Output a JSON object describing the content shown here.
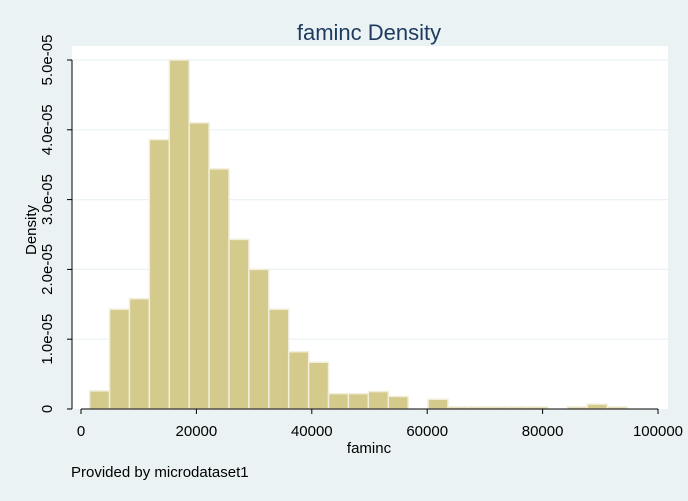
{
  "colors": {
    "background": "#EAF2F3",
    "plot_background": "#FFFFFF",
    "bar_fill": "#D3CA8C",
    "bar_stroke": "#F2EEDB",
    "gridline": "#EAF2F3",
    "title": "#1E3A5F",
    "axis": "#000000"
  },
  "chart_data": {
    "type": "bar",
    "subtype": "histogram",
    "title": "faminc Density",
    "xlabel": "faminc",
    "ylabel": "Density",
    "note": "Provided by microdataset1",
    "xlim": [
      0,
      100000
    ],
    "ylim": [
      0,
      5e-05
    ],
    "xticks": [
      0,
      20000,
      40000,
      60000,
      80000,
      100000
    ],
    "xtick_labels": [
      "0",
      "20000",
      "40000",
      "60000",
      "80000",
      "100000"
    ],
    "yticks": [
      0,
      1e-05,
      2e-05,
      3e-05,
      4e-05,
      5e-05
    ],
    "ytick_labels": [
      "0",
      "1.0e-05",
      "2.0e-05",
      "3.0e-05",
      "4.0e-05",
      "5.0e-05"
    ],
    "grid": true,
    "bins": [
      {
        "x0": 1500,
        "x1": 4950,
        "value": 2.6e-06
      },
      {
        "x0": 4950,
        "x1": 8400,
        "value": 1.43e-05
      },
      {
        "x0": 8400,
        "x1": 11850,
        "value": 1.58e-05
      },
      {
        "x0": 11850,
        "x1": 15300,
        "value": 3.86e-05
      },
      {
        "x0": 15300,
        "x1": 18750,
        "value": 5e-05
      },
      {
        "x0": 18750,
        "x1": 22200,
        "value": 4.1e-05
      },
      {
        "x0": 22200,
        "x1": 25650,
        "value": 3.44e-05
      },
      {
        "x0": 25650,
        "x1": 29100,
        "value": 2.43e-05
      },
      {
        "x0": 29100,
        "x1": 32550,
        "value": 2e-05
      },
      {
        "x0": 32550,
        "x1": 36000,
        "value": 1.43e-05
      },
      {
        "x0": 36000,
        "x1": 39450,
        "value": 8.2e-06
      },
      {
        "x0": 39450,
        "x1": 42900,
        "value": 6.7e-06
      },
      {
        "x0": 42900,
        "x1": 46350,
        "value": 2.2e-06
      },
      {
        "x0": 46350,
        "x1": 49800,
        "value": 2.2e-06
      },
      {
        "x0": 49800,
        "x1": 53250,
        "value": 2.5e-06
      },
      {
        "x0": 53250,
        "x1": 56700,
        "value": 1.8e-06
      },
      {
        "x0": 56700,
        "x1": 60150,
        "value": 0.0
      },
      {
        "x0": 60150,
        "x1": 63600,
        "value": 1.4e-06
      },
      {
        "x0": 63600,
        "x1": 67050,
        "value": 3e-07
      },
      {
        "x0": 67050,
        "x1": 70500,
        "value": 3e-07
      },
      {
        "x0": 70500,
        "x1": 73950,
        "value": 3e-07
      },
      {
        "x0": 73950,
        "x1": 77400,
        "value": 3e-07
      },
      {
        "x0": 77400,
        "x1": 80850,
        "value": 3e-07
      },
      {
        "x0": 80850,
        "x1": 84300,
        "value": 0.0
      },
      {
        "x0": 84300,
        "x1": 87750,
        "value": 3e-07
      },
      {
        "x0": 87750,
        "x1": 91200,
        "value": 7e-07
      },
      {
        "x0": 91200,
        "x1": 94650,
        "value": 3e-07
      }
    ]
  }
}
